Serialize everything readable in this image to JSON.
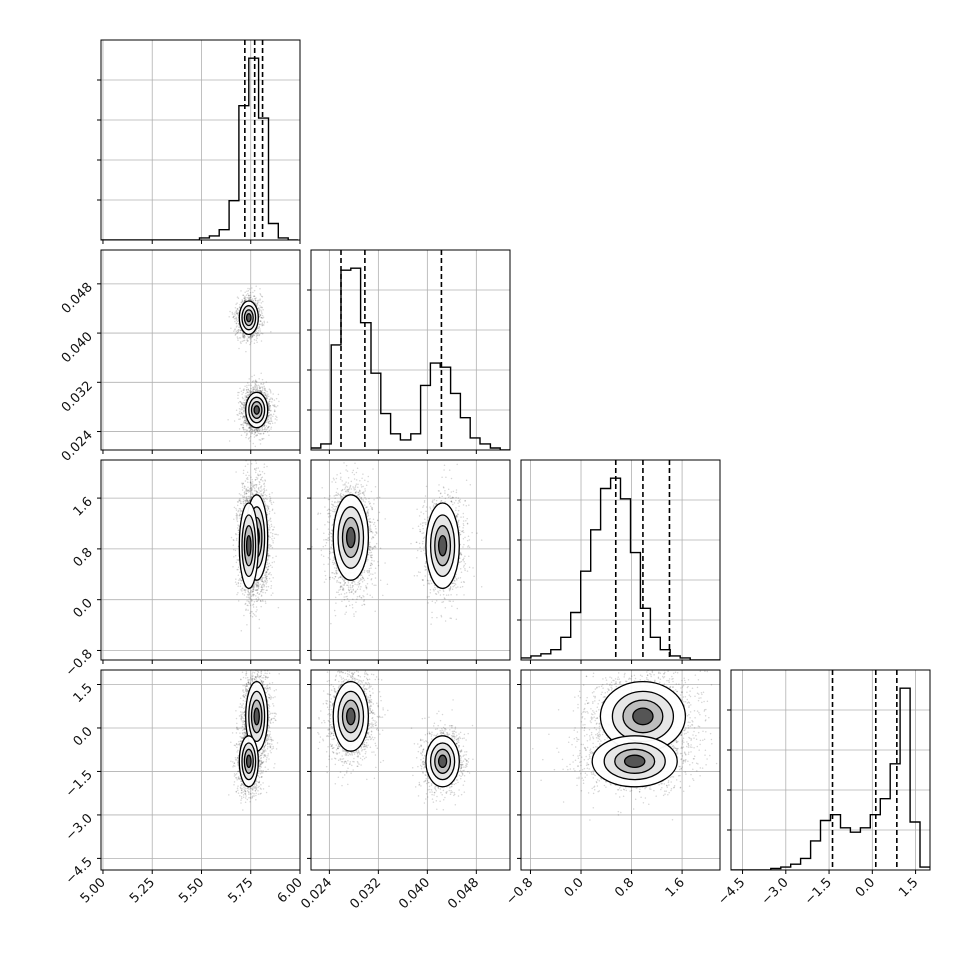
{
  "chart_data": {
    "type": "corner",
    "grid": true,
    "axis_labels": [
      "",
      "",
      "",
      ""
    ],
    "ranges": [
      [
        4.99,
        6.0
      ],
      [
        0.021,
        0.0535
      ],
      [
        -0.95,
        2.2
      ],
      [
        -4.9,
        2.0
      ]
    ],
    "ticks": [
      [
        5.0,
        5.25,
        5.5,
        5.75,
        6.0
      ],
      [
        0.024,
        0.032,
        0.04,
        0.048
      ],
      [
        -0.8,
        0.0,
        0.8,
        1.6
      ],
      [
        -4.5,
        -3.0,
        -1.5,
        0.0,
        1.5
      ]
    ],
    "tick_labels": [
      [
        "5.00",
        "5.25",
        "5.50",
        "5.75",
        "6.00"
      ],
      [
        "0.024",
        "0.032",
        "0.040",
        "0.048"
      ],
      [
        "−0.8",
        "0.0",
        "0.8",
        "1.6"
      ],
      [
        "−4.5",
        "−3.0",
        "−1.5",
        "0.0",
        "1.5"
      ]
    ],
    "quantiles": [
      [
        5.72,
        5.77,
        5.81
      ],
      [
        0.0259,
        0.0298,
        0.0423
      ],
      [
        0.55,
        0.98,
        1.4
      ],
      [
        -1.38,
        0.12,
        0.85
      ]
    ],
    "histograms": [
      {
        "bin_edges": [
          4.99,
          5.04,
          5.09,
          5.14,
          5.19,
          5.24,
          5.29,
          5.34,
          5.39,
          5.44,
          5.49,
          5.54,
          5.59,
          5.64,
          5.69,
          5.74,
          5.79,
          5.84,
          5.89,
          5.94,
          5.99
        ],
        "counts": [
          0,
          0,
          0,
          0,
          0,
          0,
          0,
          0,
          0,
          0,
          1,
          2,
          5,
          19,
          65,
          88,
          59,
          8,
          1,
          0
        ]
      },
      {
        "bin_edges": [
          0.021,
          0.0226,
          0.0243,
          0.0259,
          0.0275,
          0.0291,
          0.0308,
          0.0324,
          0.034,
          0.0356,
          0.0373,
          0.0389,
          0.0405,
          0.0421,
          0.0438,
          0.0454,
          0.047,
          0.0486,
          0.0503,
          0.0519,
          0.0535
        ],
        "counts": [
          1,
          3,
          52,
          89,
          90,
          63,
          38,
          18,
          8,
          5,
          8,
          32,
          43,
          41,
          28,
          16,
          6,
          3,
          1,
          0
        ]
      },
      {
        "bin_edges": [
          -0.95,
          -0.793,
          -0.635,
          -0.478,
          -0.32,
          -0.163,
          -0.005,
          0.153,
          0.31,
          0.468,
          0.625,
          0.783,
          0.94,
          1.098,
          1.255,
          1.412,
          1.57,
          1.728,
          1.885,
          2.043,
          2.2
        ],
        "counts": [
          1,
          2,
          3,
          5,
          11,
          23,
          43,
          63,
          83,
          88,
          78,
          52,
          25,
          11,
          5,
          2,
          1,
          0,
          0,
          0
        ]
      },
      {
        "bin_edges": [
          -4.9,
          -4.555,
          -4.21,
          -3.865,
          -3.52,
          -3.175,
          -2.83,
          -2.485,
          -2.14,
          -1.795,
          -1.45,
          -1.105,
          -0.76,
          -0.415,
          -0.07,
          0.275,
          0.62,
          0.965,
          1.31,
          1.655,
          2.0
        ],
        "counts": [
          0,
          0,
          0,
          0,
          1,
          2,
          4,
          8,
          20,
          34,
          38,
          29,
          26,
          29,
          38,
          49,
          73,
          125,
          33,
          2
        ]
      }
    ],
    "clusters": [
      {
        "weight": 0.62,
        "mean": [
          5.78,
          0.0275,
          0.98,
          0.4
        ],
        "std": [
          0.035,
          0.0018,
          0.42,
          0.75
        ]
      },
      {
        "weight": 0.38,
        "mean": [
          5.74,
          0.0425,
          0.85,
          -1.15
        ],
        "std": [
          0.03,
          0.0017,
          0.42,
          0.55
        ]
      }
    ]
  }
}
